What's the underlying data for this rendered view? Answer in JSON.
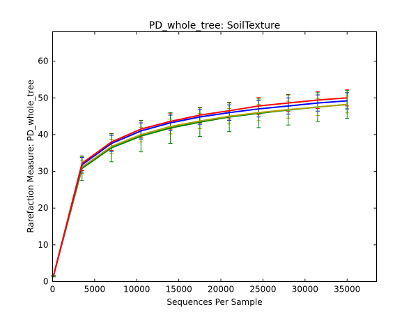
{
  "chart_data": {
    "type": "line",
    "title": "PD_whole_tree: SoilTexture",
    "xlabel": "Sequences Per Sample",
    "ylabel": "Rarefaction Measure: PD_whole_tree",
    "xlim": [
      0,
      38500
    ],
    "ylim": [
      0,
      68
    ],
    "xticks": [
      0,
      5000,
      10000,
      15000,
      20000,
      25000,
      30000,
      35000
    ],
    "yticks": [
      0,
      10,
      20,
      30,
      40,
      50,
      60
    ],
    "grid": false,
    "x": [
      100,
      3500,
      7000,
      10500,
      14000,
      17500,
      21000,
      24500,
      28000,
      31500,
      35000
    ],
    "series": [
      {
        "color": "#ff0000",
        "values": [
          1.5,
          32.2,
          38.0,
          41.5,
          43.6,
          45.3,
          46.5,
          47.8,
          48.6,
          49.4,
          50.0
        ],
        "errors": [
          0.2,
          2.0,
          2.3,
          2.3,
          2.1,
          2.1,
          2.2,
          2.3,
          2.3,
          2.3,
          2.2
        ]
      },
      {
        "color": "#0000ff",
        "values": [
          1.5,
          31.8,
          37.6,
          41.0,
          43.2,
          44.8,
          46.0,
          47.0,
          47.8,
          48.6,
          49.2
        ],
        "errors": [
          0.2,
          2.0,
          2.2,
          2.2,
          2.1,
          2.0,
          2.1,
          2.2,
          2.2,
          2.2,
          2.2
        ]
      },
      {
        "color": "#b0a000",
        "values": [
          1.5,
          31.2,
          36.8,
          40.0,
          42.2,
          43.7,
          45.0,
          46.0,
          46.8,
          47.5,
          48.2
        ],
        "errors": [
          0.2,
          1.8,
          1.9,
          2.0,
          2.0,
          2.1,
          2.1,
          2.2,
          2.3,
          2.3,
          2.3
        ]
      },
      {
        "color": "#008000",
        "values": [
          1.5,
          30.8,
          36.4,
          39.6,
          41.8,
          43.4,
          44.8,
          45.8,
          46.7,
          47.5,
          48.2
        ],
        "errors": [
          0.2,
          3.3,
          3.8,
          4.3,
          4.2,
          3.9,
          4.0,
          3.9,
          4.1,
          3.9,
          3.8
        ]
      }
    ]
  }
}
